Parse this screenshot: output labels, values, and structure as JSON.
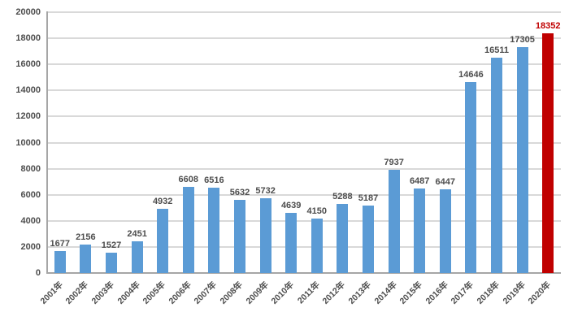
{
  "chart_data": {
    "type": "bar",
    "title": "",
    "xlabel": "",
    "ylabel": "",
    "categories": [
      "2001年",
      "2002年",
      "2003年",
      "2004年",
      "2005年",
      "2006年",
      "2007年",
      "2008年",
      "2009年",
      "2010年",
      "2011年",
      "2012年",
      "2013年",
      "2014年",
      "2015年",
      "2016年",
      "2017年",
      "2018年",
      "2019年",
      "2020年"
    ],
    "values": [
      1677,
      2156,
      1527,
      2451,
      4932,
      6608,
      6516,
      5632,
      5732,
      4639,
      4150,
      5288,
      5187,
      7937,
      6487,
      6447,
      14646,
      16511,
      17305,
      18352
    ],
    "data_labels": [
      "1677",
      "2156",
      "1527",
      "2451",
      "4932",
      "6608",
      "6516",
      "5632",
      "5732",
      "4639",
      "4150",
      "5288",
      "5187",
      "7937",
      "6487",
      "6447",
      "14646",
      "16511",
      "17305",
      "18352"
    ],
    "ylim": [
      0,
      20000
    ],
    "ytick_step": 2000,
    "ytick_labels": [
      "0",
      "2000",
      "4000",
      "6000",
      "8000",
      "10000",
      "12000",
      "14000",
      "16000",
      "18000",
      "20000"
    ],
    "grid": "horizontal",
    "legend": "none",
    "highlight_index": 19,
    "colors": {
      "bar_default": "#5B9BD5",
      "bar_highlight": "#C00000",
      "label_default": "#4D4D4D",
      "label_highlight": "#C00000",
      "tick_text": "#4D4D4D",
      "gridline": "#D9D9D9",
      "axis_line": "#A6A6A6",
      "background": "#FFFFFF"
    }
  }
}
